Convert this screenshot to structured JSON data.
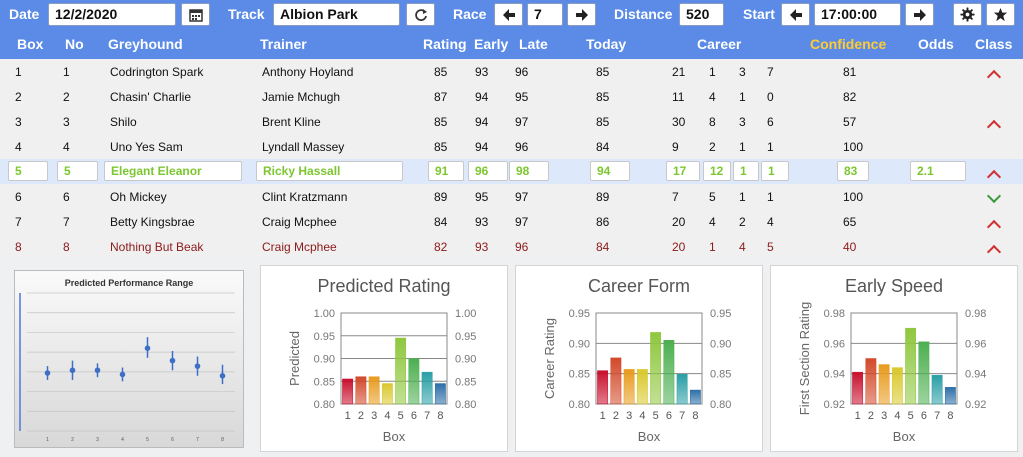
{
  "toolbar": {
    "date_label": "Date",
    "date_value": "12/2/2020",
    "calendar_icon": "calendar-icon",
    "track_label": "Track",
    "track_value": "Albion Park",
    "refresh_icon": "refresh-icon",
    "race_label": "Race",
    "race_value": "7",
    "prev_icon": "arrow-left-icon",
    "next_icon": "arrow-right-icon",
    "distance_label": "Distance",
    "distance_value": "520",
    "start_label": "Start",
    "start_value": "17:00:00",
    "settings_icon": "gear-icon",
    "favorite_icon": "star-icon"
  },
  "table": {
    "headers": {
      "box": "Box",
      "no": "No",
      "greyhound": "Greyhound",
      "trainer": "Trainer",
      "rating": "Rating",
      "early": "Early",
      "late": "Late",
      "today": "Today",
      "career": "Career",
      "confidence": "Confidence",
      "odds": "Odds",
      "class": "Class"
    },
    "rows": [
      {
        "box": "1",
        "no": "1",
        "greyhound": "Codrington Spark",
        "trainer": "Anthony Hoyland",
        "rating": "85",
        "early": "93",
        "late": "96",
        "today": "85",
        "c1": "21",
        "c2": "1",
        "c3": "3",
        "c4": "7",
        "confidence": "81",
        "odds": "",
        "cls": "up"
      },
      {
        "box": "2",
        "no": "2",
        "greyhound": "Chasin' Charlie",
        "trainer": "Jamie Mchugh",
        "rating": "87",
        "early": "94",
        "late": "95",
        "today": "85",
        "c1": "11",
        "c2": "4",
        "c3": "1",
        "c4": "0",
        "confidence": "82",
        "odds": "",
        "cls": ""
      },
      {
        "box": "3",
        "no": "3",
        "greyhound": "Shilo",
        "trainer": "Brent Kline",
        "rating": "85",
        "early": "94",
        "late": "97",
        "today": "85",
        "c1": "30",
        "c2": "8",
        "c3": "3",
        "c4": "6",
        "confidence": "57",
        "odds": "",
        "cls": "up"
      },
      {
        "box": "4",
        "no": "4",
        "greyhound": "Uno Yes Sam",
        "trainer": "Lyndall Massey",
        "rating": "85",
        "early": "94",
        "late": "96",
        "today": "84",
        "c1": "9",
        "c2": "2",
        "c3": "1",
        "c4": "1",
        "confidence": "100",
        "odds": "",
        "cls": ""
      },
      {
        "box": "5",
        "no": "5",
        "greyhound": "Elegant Eleanor",
        "trainer": "Ricky Hassall",
        "rating": "91",
        "early": "96",
        "late": "98",
        "today": "94",
        "c1": "17",
        "c2": "12",
        "c3": "1",
        "c4": "1",
        "confidence": "83",
        "odds": "2.1",
        "cls": "up"
      },
      {
        "box": "6",
        "no": "6",
        "greyhound": "Oh Mickey",
        "trainer": "Clint Kratzmann",
        "rating": "89",
        "early": "95",
        "late": "97",
        "today": "89",
        "c1": "7",
        "c2": "5",
        "c3": "1",
        "c4": "1",
        "confidence": "100",
        "odds": "",
        "cls": "down"
      },
      {
        "box": "7",
        "no": "7",
        "greyhound": "Betty Kingsbrae",
        "trainer": "Craig Mcphee",
        "rating": "84",
        "early": "93",
        "late": "97",
        "today": "86",
        "c1": "20",
        "c2": "4",
        "c3": "2",
        "c4": "4",
        "confidence": "65",
        "odds": "",
        "cls": "up"
      },
      {
        "box": "8",
        "no": "8",
        "greyhound": "Nothing But Beak",
        "trainer": "Craig Mcphee",
        "rating": "82",
        "early": "93",
        "late": "96",
        "today": "84",
        "c1": "20",
        "c2": "1",
        "c3": "4",
        "c4": "5",
        "confidence": "40",
        "odds": "",
        "cls": "up"
      }
    ]
  },
  "chart_data": [
    {
      "type": "scatter",
      "title": "Predicted Performance Range",
      "categories": [
        "1",
        "2",
        "3",
        "4",
        "5",
        "6",
        "7",
        "8"
      ],
      "values": [
        0.42,
        0.44,
        0.44,
        0.41,
        0.6,
        0.51,
        0.47,
        0.4
      ],
      "ranges": [
        [
          0.37,
          0.47
        ],
        [
          0.37,
          0.51
        ],
        [
          0.39,
          0.49
        ],
        [
          0.36,
          0.46
        ],
        [
          0.53,
          0.68
        ],
        [
          0.44,
          0.58
        ],
        [
          0.4,
          0.54
        ],
        [
          0.34,
          0.48
        ]
      ],
      "ylim": [
        0,
        1
      ],
      "color": "#3c6fc5"
    },
    {
      "type": "bar",
      "title": "Predicted Rating",
      "xlabel": "Box",
      "ylabel": "Predicted",
      "categories": [
        "1",
        "2",
        "3",
        "4",
        "5",
        "6",
        "7",
        "8"
      ],
      "values": [
        0.855,
        0.86,
        0.86,
        0.845,
        0.945,
        0.9,
        0.87,
        0.845
      ],
      "ylim": [
        0.8,
        1.0
      ],
      "yticks": [
        "0.80",
        "0.85",
        "0.90",
        "0.95",
        "1.00"
      ],
      "colors": [
        "#c8102e",
        "#d2492a",
        "#e89b1e",
        "#d9c82d",
        "#8fc73e",
        "#4caf50",
        "#2a9fa6",
        "#2d6fa8"
      ]
    },
    {
      "type": "bar",
      "title": "Career Form",
      "xlabel": "Box",
      "ylabel": "Career Rating",
      "categories": [
        "1",
        "2",
        "3",
        "4",
        "5",
        "6",
        "7",
        "8"
      ],
      "values": [
        0.855,
        0.876,
        0.857,
        0.857,
        0.918,
        0.905,
        0.849,
        0.823
      ],
      "ylim": [
        0.8,
        0.95
      ],
      "yticks": [
        "0.80",
        "0.85",
        "0.90",
        "0.95"
      ],
      "colors": [
        "#c8102e",
        "#d2492a",
        "#e89b1e",
        "#d9c82d",
        "#8fc73e",
        "#4caf50",
        "#2a9fa6",
        "#2d6fa8"
      ]
    },
    {
      "type": "bar",
      "title": "Early Speed",
      "xlabel": "Box",
      "ylabel": "First Section Rating",
      "categories": [
        "1",
        "2",
        "3",
        "4",
        "5",
        "6",
        "7",
        "8"
      ],
      "values": [
        0.941,
        0.95,
        0.946,
        0.944,
        0.97,
        0.961,
        0.939,
        0.931
      ],
      "ylim": [
        0.92,
        0.98
      ],
      "yticks": [
        "0.92",
        "0.94",
        "0.96",
        "0.98"
      ],
      "colors": [
        "#c8102e",
        "#d2492a",
        "#e89b1e",
        "#d9c82d",
        "#8fc73e",
        "#4caf50",
        "#2a9fa6",
        "#2d6fa8"
      ]
    }
  ]
}
